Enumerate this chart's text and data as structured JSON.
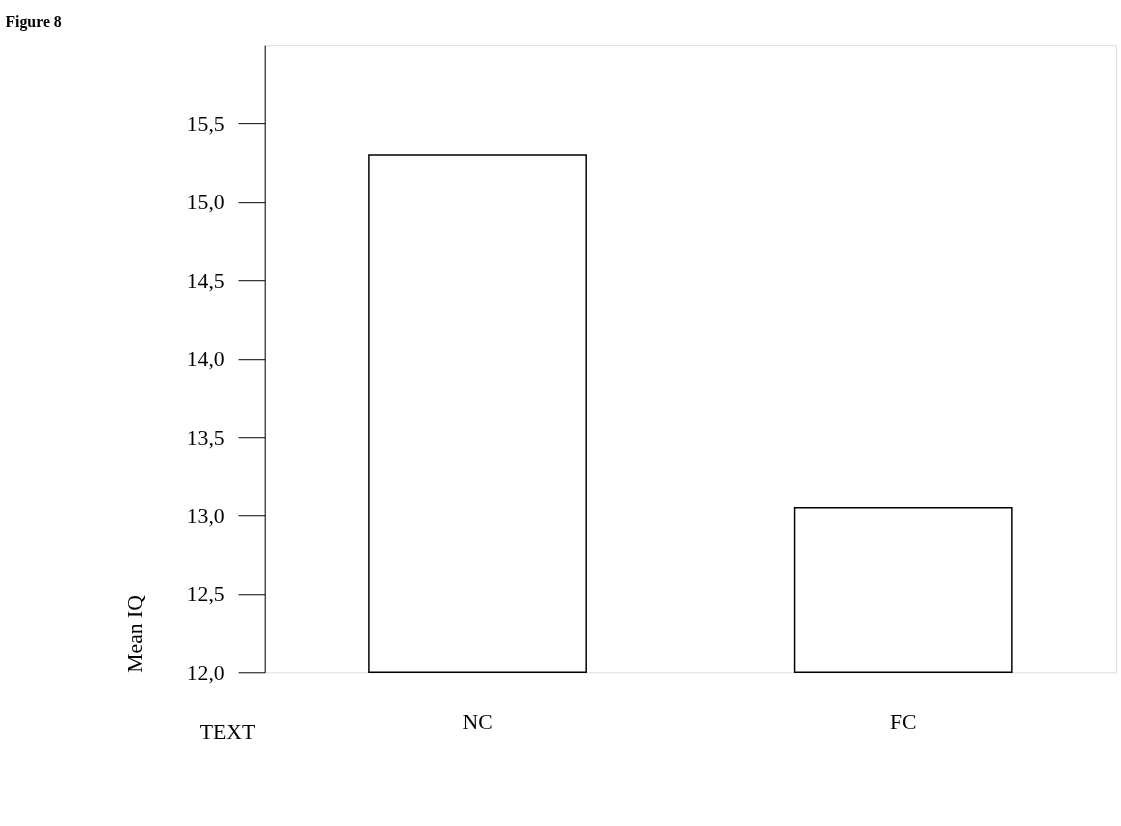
{
  "chart_data": {
    "type": "bar",
    "title": "Figure 8",
    "xlabel": "TEXT",
    "ylabel": "Mean IQ",
    "categories": [
      "NC",
      "FC"
    ],
    "values": [
      15.3,
      13.05
    ],
    "color": "#ffffff",
    "ylim": [
      12,
      16
    ],
    "yticks": [
      {
        "value": 12.0,
        "label": "12,0"
      },
      {
        "value": 12.5,
        "label": "12,5"
      },
      {
        "value": 13.0,
        "label": "13,0"
      },
      {
        "value": 13.5,
        "label": "13,5"
      },
      {
        "value": 14.0,
        "label": "14,0"
      },
      {
        "value": 14.5,
        "label": "14,5"
      },
      {
        "value": 15.0,
        "label": "15,0"
      },
      {
        "value": 15.5,
        "label": "15,5"
      }
    ],
    "grid": false
  }
}
